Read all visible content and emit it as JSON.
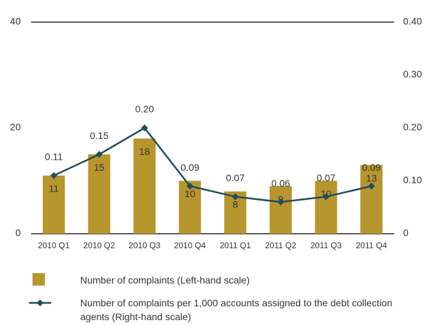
{
  "chart_data": {
    "type": "bar_line",
    "categories": [
      "2010 Q1",
      "2010 Q2",
      "2010 Q3",
      "2010 Q4",
      "2011 Q1",
      "2011 Q2",
      "2011 Q3",
      "2011 Q4"
    ],
    "series": [
      {
        "name": "Number of complaints (Left-hand scale)",
        "type": "bar",
        "color": "#b8962e",
        "values": [
          11,
          15,
          18,
          10,
          8,
          9,
          10,
          13
        ]
      },
      {
        "name": "Number of complaints per 1,000 accounts assigned to the debt collection agents (Right-hand scale)",
        "type": "line",
        "axis": "y2",
        "color": "#1f4e5a",
        "values": [
          0.11,
          0.15,
          0.2,
          0.09,
          0.07,
          0.06,
          0.07,
          0.09
        ],
        "value_labels": [
          "0.11",
          "0.15",
          "0.20",
          "0.09",
          "0.07",
          "0.06",
          "0.07",
          "0.09"
        ]
      }
    ],
    "ylim": [
      0,
      40
    ],
    "yticks": [
      0,
      20,
      40
    ],
    "y2lim": [
      0,
      0.4
    ],
    "y2ticks": [
      0,
      {
        "value": 0.1,
        "label": "0.10"
      },
      {
        "value": 0.2,
        "label": "0.20"
      },
      {
        "value": 0.3,
        "label": "0.30"
      },
      {
        "value": 0.4,
        "label": "0.40"
      }
    ]
  }
}
